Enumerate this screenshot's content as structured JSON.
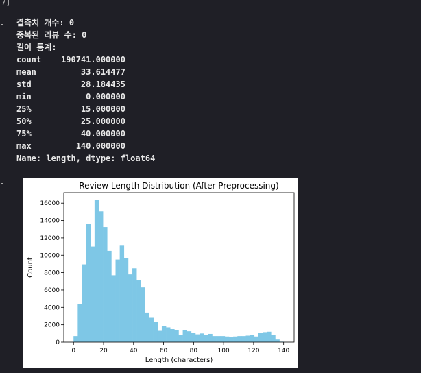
{
  "cell": {
    "execution_label": "7]"
  },
  "output_lines": [
    "결측치 개수: 0",
    "중복된 리뷰 수: 0",
    "길이 통계:",
    "count    190741.000000",
    "mean         33.614477",
    "std          28.184435",
    "min           0.000000",
    "25%          15.000000",
    "50%          25.000000",
    "75%          40.000000",
    "max         140.000000",
    "Name: length, dtype: float64"
  ],
  "chart_data": {
    "type": "bar",
    "title": "Review Length Distribution (After Preprocessing)",
    "xlabel": "Length (characters)",
    "ylabel": "Count",
    "xlim": [
      -6.5,
      147
    ],
    "ylim": [
      0,
      17200
    ],
    "xticks": [
      0,
      20,
      40,
      60,
      80,
      100,
      120,
      140
    ],
    "yticks": [
      0,
      2000,
      4000,
      6000,
      8000,
      10000,
      12000,
      14000,
      16000
    ],
    "bar_color": "#7ec7e6",
    "bin_edges_start": 0,
    "bin_width": 2.8,
    "values": [
      700,
      4400,
      8950,
      13600,
      11000,
      16400,
      15050,
      13250,
      10500,
      7700,
      9500,
      11100,
      9650,
      7800,
      8500,
      7100,
      6300,
      3400,
      2800,
      2350,
      1300,
      1850,
      1700,
      1500,
      1400,
      800,
      1350,
      1250,
      1100,
      900,
      1000,
      850,
      950,
      700,
      700,
      700,
      650,
      550,
      650,
      700,
      700,
      750,
      800,
      650,
      1050,
      1150,
      1200,
      850,
      300,
      50
    ]
  }
}
